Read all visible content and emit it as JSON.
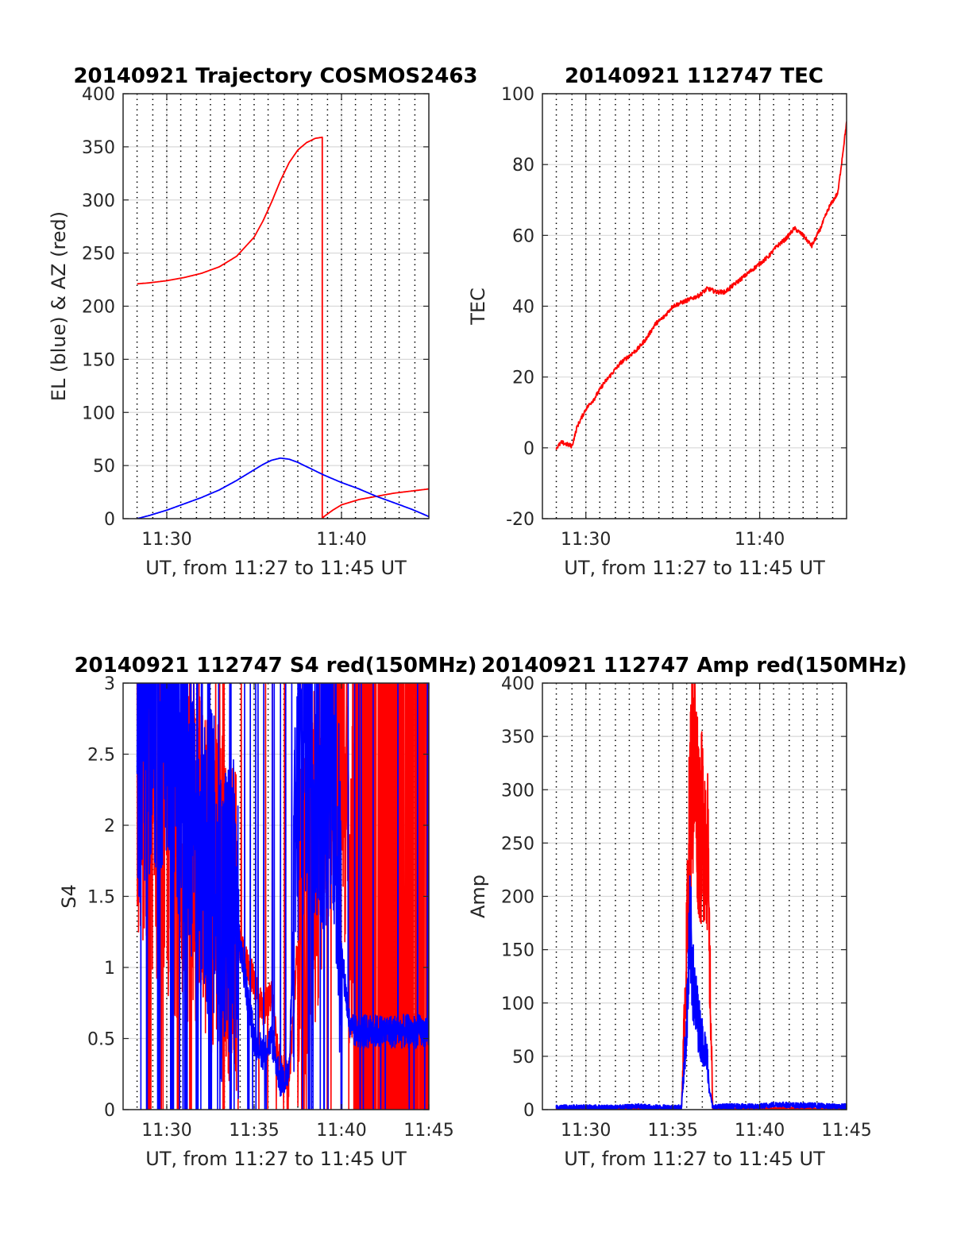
{
  "figure": {
    "colors": {
      "red": "#ff0000",
      "blue": "#0000ff",
      "grid": "#d9d9d9",
      "axis": "#262626",
      "vgrid": "#000000"
    }
  },
  "chart_data": [
    {
      "type": "line",
      "title": "20140921 Trajectory COSMOS2463",
      "xlabel": "UT, from 11:27 to 11:45 UT",
      "ylabel": "EL (blue) & AZ (red)",
      "xlim": [
        27.5,
        45
      ],
      "ylim": [
        0,
        400
      ],
      "yticks": [
        0,
        50,
        100,
        150,
        200,
        250,
        300,
        350,
        400
      ],
      "xticks": [
        {
          "value": 30,
          "label": "11:30"
        },
        {
          "value": 40,
          "label": "11:40"
        }
      ],
      "minor_x_dotted": [
        28.3,
        29.2,
        30,
        30.8,
        31.7,
        32.5,
        33.3,
        34.2,
        35,
        35.8,
        36.7,
        37.5,
        38.3,
        39.2,
        40,
        40.8,
        41.7,
        42.5,
        43.3,
        44.2
      ],
      "grid": true,
      "series": [
        {
          "color": "red",
          "x": [
            28.3,
            29,
            30,
            31,
            32,
            33,
            34,
            35,
            35.5,
            36,
            36.5,
            37,
            37.5,
            38,
            38.5,
            38.9,
            38.9,
            39,
            39.5,
            40,
            41,
            42,
            43,
            44,
            45
          ],
          "y": [
            221,
            222,
            224,
            227,
            231,
            237,
            247,
            265,
            280,
            298,
            318,
            335,
            347,
            354,
            358,
            359,
            0,
            2,
            8,
            13,
            18,
            21,
            24,
            26,
            28
          ]
        },
        {
          "color": "blue",
          "x": [
            28.3,
            29,
            30,
            31,
            32,
            33,
            34,
            35,
            35.5,
            36,
            36.5,
            37,
            37.5,
            38,
            38.5,
            39,
            40,
            41,
            42,
            43,
            44,
            45
          ],
          "y": [
            0,
            3,
            8,
            14,
            20,
            27,
            36,
            46,
            51,
            55,
            57,
            56,
            53,
            49,
            45,
            41,
            34,
            28,
            21,
            15,
            9,
            2
          ]
        }
      ]
    },
    {
      "type": "line",
      "title": "20140921 112747 TEC",
      "xlabel": "UT, from 11:27 to 11:45 UT",
      "ylabel": "TEC",
      "xlim": [
        27.5,
        45
      ],
      "ylim": [
        -20,
        100
      ],
      "yticks": [
        -20,
        0,
        20,
        40,
        60,
        80,
        100
      ],
      "xticks": [
        {
          "value": 30,
          "label": "11:30"
        },
        {
          "value": 40,
          "label": "11:40"
        }
      ],
      "minor_x_dotted": [
        28.3,
        29.2,
        30,
        30.8,
        31.7,
        32.5,
        33.3,
        34.2,
        35,
        35.8,
        36.7,
        37.5,
        38.3,
        39.2,
        40,
        40.8,
        41.7,
        42.5,
        43.3,
        44.2
      ],
      "grid": true,
      "series": [
        {
          "color": "red",
          "x": [
            28.3,
            28.6,
            28.9,
            29.2,
            29.5,
            30,
            30.5,
            31,
            31.5,
            32,
            32.5,
            33,
            33.5,
            34,
            34.5,
            35,
            35.5,
            36,
            36.5,
            37,
            37.5,
            38,
            38.5,
            39,
            39.5,
            40,
            40.5,
            41,
            41.5,
            42,
            42.5,
            43,
            43.5,
            44,
            44.5,
            45
          ],
          "y": [
            0,
            1.5,
            1,
            0.5,
            6,
            11,
            14,
            18,
            21,
            24,
            26,
            28,
            31,
            35,
            37,
            40,
            41,
            42,
            43,
            45,
            44,
            44,
            46,
            48,
            50,
            52,
            54,
            57,
            59,
            62,
            60,
            57,
            62,
            68,
            72,
            92
          ]
        }
      ]
    },
    {
      "type": "line",
      "title": "20140921 112747 S4 red(150MHz)",
      "xlabel": "UT, from 11:27 to 11:45 UT",
      "ylabel": "S4",
      "xlim": [
        27.5,
        45
      ],
      "ylim": [
        0,
        3
      ],
      "yticks": [
        0,
        0.5,
        1,
        1.5,
        2,
        2.5,
        3
      ],
      "ytick_labels": [
        "0",
        "0.5",
        "1",
        "1.5",
        "2",
        "2.5",
        "3"
      ],
      "xticks": [
        {
          "value": 30,
          "label": "11:30"
        },
        {
          "value": 35,
          "label": "11:35"
        },
        {
          "value": 40,
          "label": "11:40"
        },
        {
          "value": 45,
          "label": "11:45"
        }
      ],
      "minor_x_dotted": [
        28.3,
        29.2,
        30,
        30.8,
        31.7,
        32.5,
        33.3,
        34.2,
        35,
        35.8,
        36.7,
        37.5,
        38.3,
        39.2,
        40,
        40.8,
        41.7,
        42.5,
        43.3,
        44.2
      ],
      "grid": true,
      "series": [
        {
          "color": "red",
          "noisy": true,
          "x": [
            28.3,
            29,
            30,
            31,
            32,
            33,
            34,
            35,
            35.5,
            36,
            36.5,
            37,
            37.5,
            38,
            38.5,
            39,
            39.5,
            40,
            40.5,
            42,
            44,
            45
          ],
          "y": [
            2.4,
            2.2,
            1.9,
            1.8,
            1.7,
            1.5,
            1.2,
            0.9,
            0.7,
            0.8,
            0.3,
            0.2,
            1.2,
            1.4,
            1.8,
            2.2,
            2.6,
            2.8,
            1.5,
            1.5,
            1.5,
            1.5
          ],
          "dropouts": [
            [
              28.9,
              29.1
            ],
            [
              29.6,
              29.7
            ],
            [
              30.6,
              30.7
            ],
            [
              31.3,
              31.4
            ],
            [
              33.2,
              33.3
            ],
            [
              40.7,
              45
            ]
          ]
        },
        {
          "color": "blue",
          "noisy": true,
          "x": [
            28.3,
            29,
            30,
            31,
            32,
            33,
            34,
            35,
            35.5,
            36,
            36.5,
            37,
            37.5,
            38,
            38.5,
            39,
            39.5,
            40,
            40.5,
            42,
            44,
            45
          ],
          "y": [
            2.6,
            2.8,
            2.9,
            2.4,
            2.1,
            1.4,
            1.3,
            0.5,
            0.4,
            0.5,
            0.2,
            0.25,
            2.2,
            2.7,
            2.5,
            2.4,
            2.6,
            1.1,
            0.55,
            0.55,
            0.55,
            0.55
          ],
          "dropouts": [
            [
              28.8,
              28.9
            ],
            [
              29.4,
              29.6
            ],
            [
              30.2,
              30.4
            ],
            [
              31.0,
              31.2
            ],
            [
              31.7,
              31.8
            ],
            [
              32.4,
              32.5
            ],
            [
              33.6,
              33.7
            ],
            [
              38.1,
              38.2
            ]
          ]
        }
      ]
    },
    {
      "type": "line",
      "title": "20140921 112747 Amp red(150MHz)",
      "xlabel": "UT, from 11:27 to 11:45 UT",
      "ylabel": "Amp",
      "xlim": [
        27.5,
        45
      ],
      "ylim": [
        0,
        400
      ],
      "yticks": [
        0,
        50,
        100,
        150,
        200,
        250,
        300,
        350,
        400
      ],
      "xticks": [
        {
          "value": 30,
          "label": "11:30"
        },
        {
          "value": 35,
          "label": "11:35"
        },
        {
          "value": 40,
          "label": "11:40"
        },
        {
          "value": 45,
          "label": "11:45"
        }
      ],
      "minor_x_dotted": [
        28.3,
        29.2,
        30,
        30.8,
        31.7,
        32.5,
        33.3,
        34.2,
        35,
        35.8,
        36.7,
        37.5,
        38.3,
        39.2,
        40,
        40.8,
        41.7,
        42.5,
        43.3,
        44.2
      ],
      "grid": true,
      "series": [
        {
          "color": "red",
          "noisy": true,
          "x": [
            28.3,
            30,
            32,
            34,
            35.5,
            35.8,
            36,
            36.2,
            36.4,
            36.6,
            36.8,
            37,
            37.1,
            37.3,
            38,
            40,
            42,
            44,
            45
          ],
          "y": [
            0,
            0,
            0,
            0,
            0,
            150,
            290,
            335,
            290,
            260,
            270,
            250,
            150,
            0,
            0,
            0,
            0,
            0,
            0
          ]
        },
        {
          "color": "blue",
          "noisy": true,
          "x": [
            28.3,
            30,
            32,
            33,
            34,
            35.5,
            35.8,
            36,
            36.2,
            36.4,
            36.6,
            36.8,
            37,
            37.1,
            37.3,
            38,
            40,
            41,
            42,
            43,
            44,
            45
          ],
          "y": [
            2,
            2,
            2,
            3,
            2,
            2,
            80,
            170,
            110,
            90,
            70,
            60,
            45,
            20,
            2,
            3,
            3,
            5,
            4,
            4,
            3,
            3
          ]
        }
      ]
    }
  ]
}
